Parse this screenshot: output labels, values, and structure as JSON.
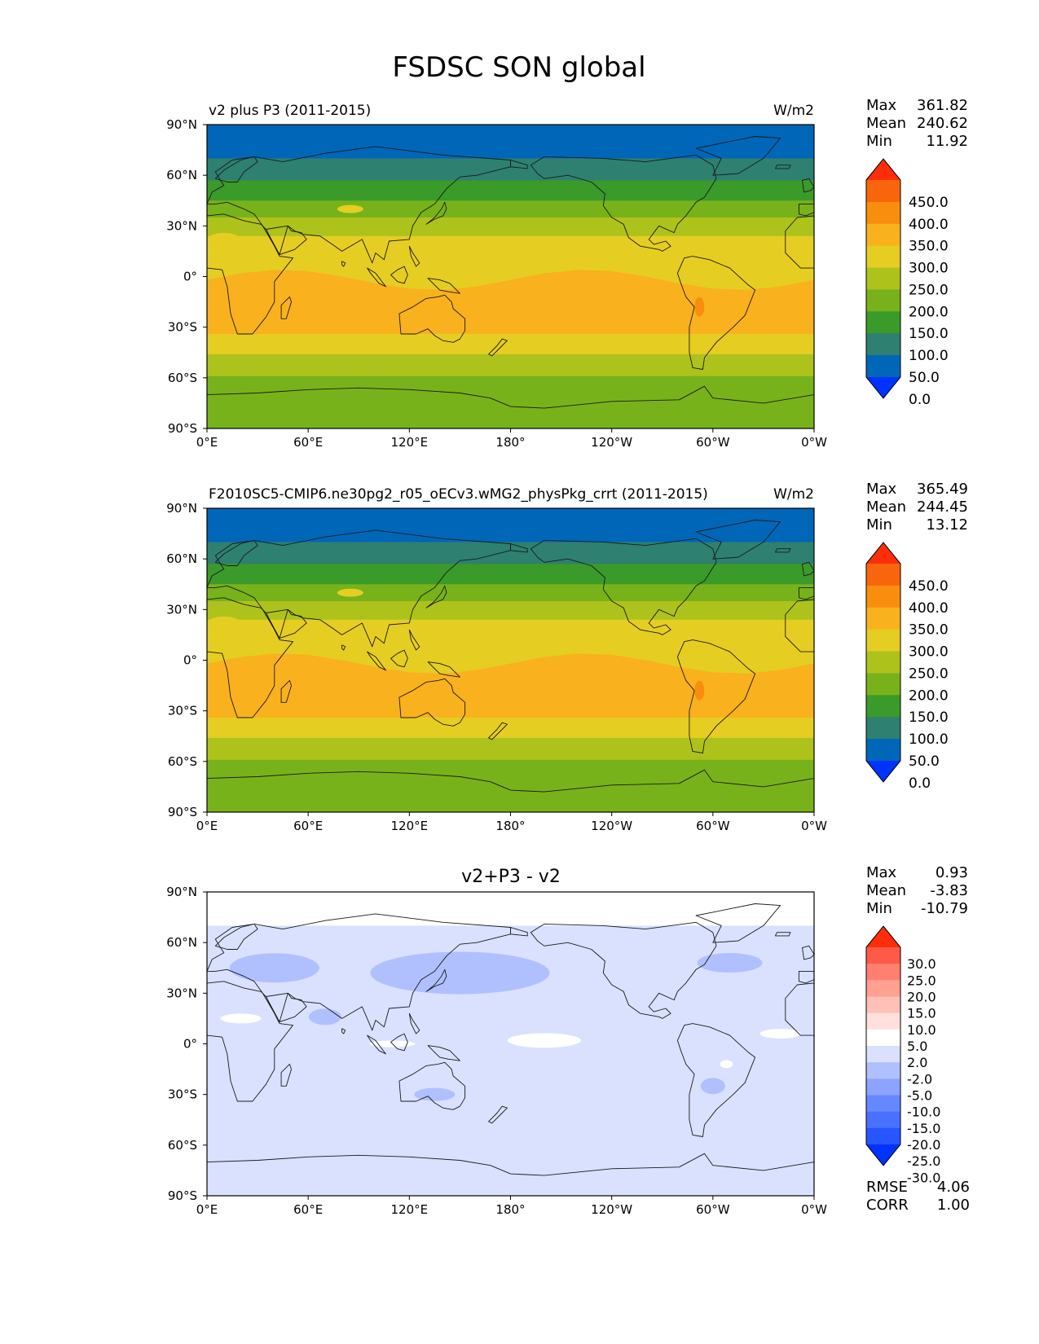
{
  "figure": {
    "title": "FSDSC SON global"
  },
  "colors": {
    "abs_levels": [
      "#0033ff",
      "#0066b8",
      "#2e8070",
      "#3a9a2a",
      "#78b21a",
      "#aec21c",
      "#e6cd22",
      "#f9b11e",
      "#f98e0e",
      "#f9650c",
      "#ff2e0a"
    ],
    "diff_levels": [
      "#0033ff",
      "#2755ff",
      "#4a70ff",
      "#6688ff",
      "#8ca4ff",
      "#b0c0ff",
      "#d9e1ff",
      "#ffffff",
      "#ffe0dc",
      "#ffc0b8",
      "#ffa090",
      "#ff8070",
      "#ff5a48",
      "#ff2e0a"
    ],
    "coastline": "#1a1a1a"
  },
  "axes": {
    "lat_ticks": [
      "90°N",
      "60°N",
      "30°N",
      "0°",
      "30°S",
      "60°S",
      "90°S"
    ],
    "lon_ticks": [
      "0°E",
      "60°E",
      "120°E",
      "180°",
      "120°W",
      "60°W",
      "0°W"
    ]
  },
  "panels": [
    {
      "id": "test",
      "title_left": "v2 plus P3 (2011-2015)",
      "title_center": "",
      "units": "W/m2",
      "stats": [
        {
          "label": "Max",
          "value": "361.82"
        },
        {
          "label": "Mean",
          "value": "240.62"
        },
        {
          "label": "Min",
          "value": "11.92"
        }
      ],
      "colorbar_labels": [
        "450.0",
        "400.0",
        "350.0",
        "300.0",
        "250.0",
        "200.0",
        "150.0",
        "100.0",
        "50.0",
        "0.0"
      ],
      "footer_stats": []
    },
    {
      "id": "reference",
      "title_left": "F2010SC5-CMIP6.ne30pg2_r05_oECv3.wMG2_physPkg_crrt (2011-2015)",
      "title_center": "",
      "units": "W/m2",
      "stats": [
        {
          "label": "Max",
          "value": "365.49"
        },
        {
          "label": "Mean",
          "value": "244.45"
        },
        {
          "label": "Min",
          "value": "13.12"
        }
      ],
      "colorbar_labels": [
        "450.0",
        "400.0",
        "350.0",
        "300.0",
        "250.0",
        "200.0",
        "150.0",
        "100.0",
        "50.0",
        "0.0"
      ],
      "footer_stats": []
    },
    {
      "id": "difference",
      "title_left": "",
      "title_center": "v2+P3 - v2",
      "units": "",
      "stats": [
        {
          "label": "Max",
          "value": "0.93"
        },
        {
          "label": "Mean",
          "value": "-3.83"
        },
        {
          "label": "Min",
          "value": "-10.79"
        }
      ],
      "colorbar_labels": [
        "30.0",
        "25.0",
        "20.0",
        "15.0",
        "10.0",
        "5.0",
        "2.0",
        "-2.0",
        "-5.0",
        "-10.0",
        "-15.0",
        "-20.0",
        "-25.0",
        "-30.0"
      ],
      "footer_stats": [
        {
          "label": "RMSE",
          "value": "4.06"
        },
        {
          "label": "CORR",
          "value": "1.00"
        }
      ]
    }
  ]
}
